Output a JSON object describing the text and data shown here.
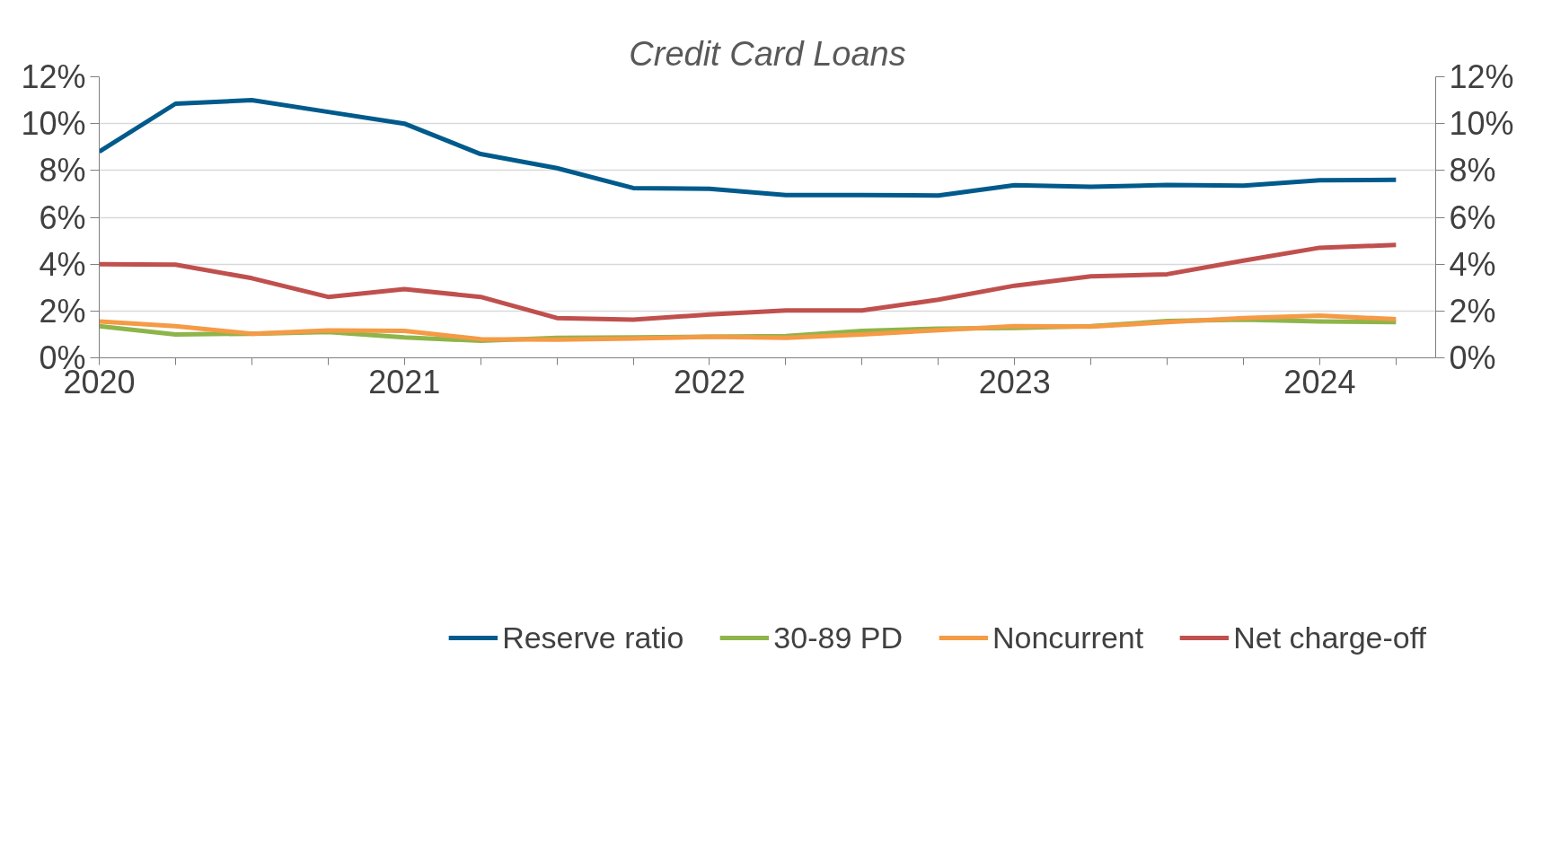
{
  "chart_data": {
    "type": "line",
    "title": "Credit Card Loans",
    "x": [
      2020,
      2020.25,
      2020.5,
      2020.75,
      2021,
      2021.25,
      2021.5,
      2021.75,
      2022,
      2022.25,
      2022.5,
      2022.75,
      2023,
      2023.25,
      2023.5,
      2023.75,
      2024,
      2024.25
    ],
    "series": [
      {
        "name": "Reserve ratio",
        "color": "#005a8c",
        "values": [
          8.8,
          10.85,
          11.0,
          10.5,
          10.0,
          8.7,
          8.1,
          7.25,
          7.22,
          6.95,
          6.95,
          6.93,
          7.37,
          7.3,
          7.38,
          7.35,
          7.58,
          7.6
        ]
      },
      {
        "name": "30-89 PD",
        "color": "#8db54a",
        "values": [
          1.35,
          1.0,
          1.03,
          1.1,
          0.87,
          0.73,
          0.85,
          0.87,
          0.9,
          0.93,
          1.15,
          1.25,
          1.27,
          1.35,
          1.57,
          1.63,
          1.55,
          1.52
        ]
      },
      {
        "name": "Noncurrent",
        "color": "#f59a45",
        "values": [
          1.55,
          1.35,
          1.03,
          1.17,
          1.15,
          0.8,
          0.78,
          0.82,
          0.9,
          0.85,
          1.0,
          1.18,
          1.35,
          1.33,
          1.52,
          1.7,
          1.8,
          1.65
        ]
      },
      {
        "name": "Net charge-off",
        "color": "#c0504d",
        "values": [
          4.0,
          3.98,
          3.4,
          2.6,
          2.93,
          2.6,
          1.7,
          1.63,
          1.85,
          2.02,
          2.02,
          2.48,
          3.08,
          3.48,
          3.57,
          4.15,
          4.7,
          4.82
        ]
      }
    ],
    "xlim": [
      2020,
      2024.38
    ],
    "xticks": [
      2020,
      {
        "value": 2020.25,
        "label": null
      },
      {
        "value": 2020.5,
        "label": null
      },
      {
        "value": 2020.75,
        "label": null
      },
      2021,
      {
        "value": 2021.25,
        "label": null
      },
      {
        "value": 2021.5,
        "label": null
      },
      {
        "value": 2021.75,
        "label": null
      },
      2022,
      {
        "value": 2022.25,
        "label": null
      },
      {
        "value": 2022.5,
        "label": null
      },
      {
        "value": 2022.75,
        "label": null
      },
      2023,
      {
        "value": 2023.25,
        "label": null
      },
      {
        "value": 2023.5,
        "label": null
      },
      {
        "value": 2023.75,
        "label": null
      },
      2024,
      {
        "value": 2024.25,
        "label": null
      }
    ],
    "ylim": [
      0,
      12
    ],
    "yticks": [
      {
        "value": 0,
        "label": "0%"
      },
      {
        "value": 2,
        "label": "2%"
      },
      {
        "value": 4,
        "label": "4%"
      },
      {
        "value": 6,
        "label": "6%"
      },
      {
        "value": 8,
        "label": "8%"
      },
      {
        "value": 10,
        "label": "10%"
      },
      {
        "value": 12,
        "label": "12%"
      }
    ],
    "y2lim": [
      0,
      12
    ],
    "y2ticks": [
      {
        "value": 0,
        "label": "0%"
      },
      {
        "value": 2,
        "label": "2%"
      },
      {
        "value": 4,
        "label": "4%"
      },
      {
        "value": 6,
        "label": "6%"
      },
      {
        "value": 8,
        "label": "8%"
      },
      {
        "value": 10,
        "label": "10%"
      },
      {
        "value": 12,
        "label": "12%"
      }
    ],
    "grid": "y",
    "legend": "bottom",
    "marker": "none",
    "line_style": "solid"
  }
}
